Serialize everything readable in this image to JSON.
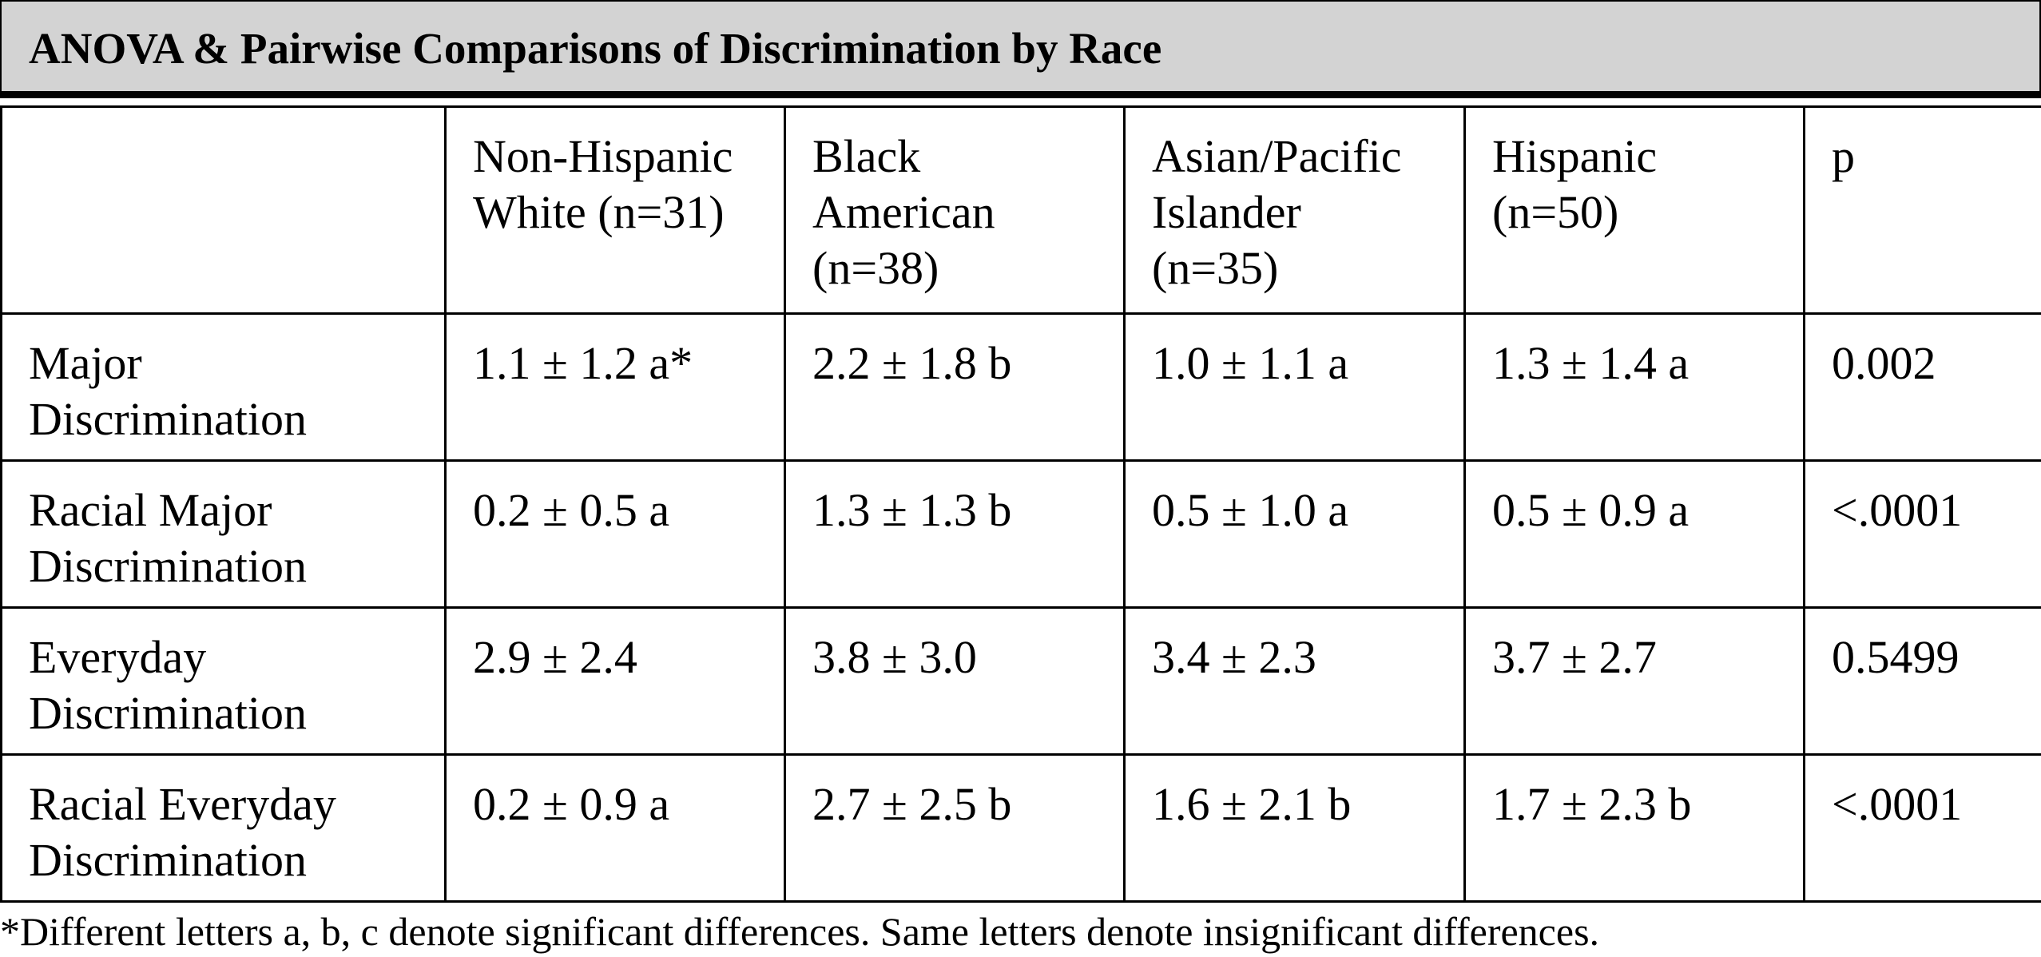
{
  "table": {
    "title": "ANOVA & Pairwise Comparisons of Discrimination by Race",
    "columns": [
      {
        "lines": [
          ""
        ]
      },
      {
        "lines": [
          "Non-Hispanic",
          "White (n=31)"
        ]
      },
      {
        "lines": [
          "Black",
          "American",
          "(n=38)"
        ]
      },
      {
        "lines": [
          "Asian/Pacific",
          "Islander",
          "(n=35)"
        ]
      },
      {
        "lines": [
          "Hispanic",
          "(n=50)"
        ]
      },
      {
        "lines": [
          "p"
        ]
      }
    ],
    "rows": [
      {
        "label": [
          "Major",
          "Discrimination"
        ],
        "values": [
          "1.1 ± 1.2 a*",
          "2.2 ± 1.8 b",
          "1.0 ± 1.1 a",
          "1.3 ± 1.4 a"
        ],
        "p": "0.002"
      },
      {
        "label": [
          "Racial Major",
          "Discrimination"
        ],
        "values": [
          "0.2 ± 0.5 a",
          "1.3 ± 1.3 b",
          "0.5 ± 1.0 a",
          "0.5 ± 0.9 a"
        ],
        "p": "<.0001"
      },
      {
        "label": [
          "Everyday",
          "Discrimination"
        ],
        "values": [
          "2.9 ± 2.4",
          "3.8 ± 3.0",
          "3.4 ± 2.3",
          "3.7 ± 2.7"
        ],
        "p": "0.5499"
      },
      {
        "label": [
          "Racial Everyday",
          "Discrimination"
        ],
        "values": [
          "0.2 ± 0.9 a",
          "2.7 ± 2.5 b",
          "1.6 ± 2.1 b",
          "1.7 ± 2.3 b"
        ],
        "p": "<.0001"
      }
    ],
    "footnote": "*Different letters a, b, c denote significant differences. Same letters denote insignificant differences."
  }
}
